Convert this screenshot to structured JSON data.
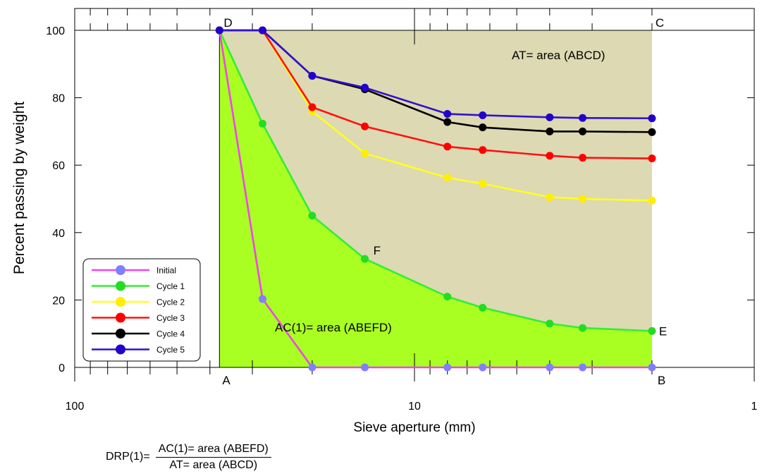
{
  "chart_data": {
    "type": "line",
    "x_scale": "log",
    "x_reversed": true,
    "xlim": [
      100,
      1
    ],
    "ylim": [
      0,
      105
    ],
    "grid": false,
    "legend_position": "bottom-left",
    "xlabel": "Sieve aperture (mm)",
    "ylabel": "Percent passing by weight",
    "x_ticks": [
      100,
      10,
      1
    ],
    "x_tick_labels": [
      "100",
      "10",
      "1"
    ],
    "y_ticks": [
      0,
      20,
      40,
      60,
      80,
      100
    ],
    "y_tick_labels": [
      "0",
      "20",
      "40",
      "60",
      "80",
      "100"
    ],
    "series": [
      {
        "name": "Initial",
        "color": "#ee44ee",
        "marker_color": "#7f7fff",
        "x": [
          37.5,
          28,
          20,
          14,
          8,
          6.3,
          4,
          3.2,
          2
        ],
        "y": [
          100,
          20.3,
          0,
          0,
          0,
          0,
          0,
          0,
          0
        ]
      },
      {
        "name": "Cycle 1",
        "color": "#33ee33",
        "marker_color": "#22dd22",
        "x": [
          37.5,
          28,
          20,
          14,
          8,
          6.3,
          4,
          3.2,
          2
        ],
        "y": [
          100,
          72.3,
          45,
          32.2,
          21,
          17.7,
          13,
          11.7,
          10.8
        ]
      },
      {
        "name": "Cycle 2",
        "color": "#ffff22",
        "marker_color": "#ffee00",
        "x": [
          37.5,
          28,
          20,
          14,
          8,
          6.3,
          4,
          3.2,
          2
        ],
        "y": [
          100,
          100,
          76,
          63.5,
          56.3,
          54.5,
          50.5,
          50,
          49.5
        ]
      },
      {
        "name": "Cycle 3",
        "color": "#ff1111",
        "marker_color": "#ff0000",
        "x": [
          37.5,
          28,
          20,
          14,
          8,
          6.3,
          4,
          3.2,
          2
        ],
        "y": [
          100,
          100,
          77.2,
          71.5,
          65.5,
          64.5,
          62.8,
          62.2,
          62
        ]
      },
      {
        "name": "Cycle 4",
        "color": "#000000",
        "marker_color": "#000000",
        "x": [
          37.5,
          28,
          20,
          14,
          8,
          6.3,
          4,
          3.2,
          2
        ],
        "y": [
          100,
          100,
          86.5,
          82.5,
          72.8,
          71.2,
          70,
          70,
          69.8
        ]
      },
      {
        "name": "Cycle 5",
        "color": "#3311cc",
        "marker_color": "#2200cc",
        "x": [
          37.5,
          28,
          20,
          14,
          8,
          6.3,
          4,
          3.2,
          2
        ],
        "y": [
          100,
          100,
          86.5,
          83,
          75.2,
          74.8,
          74.2,
          74,
          73.9
        ]
      }
    ],
    "fill_total_color": "#ddd9b3",
    "fill_cycle_color": "#aaff22",
    "annotations": {
      "corner_A": "A",
      "corner_B": "B",
      "corner_C": "C",
      "corner_D": "D",
      "point_E": "E",
      "point_F": "F",
      "area_total": "AT= area (ABCD)",
      "area_cycle": "AC(1)= area (ABEFD)"
    }
  },
  "formula": {
    "lhs": "DRP(1)=",
    "numerator": "AC(1)= area (ABEFD)",
    "denominator": "AT= area (ABCD)"
  }
}
